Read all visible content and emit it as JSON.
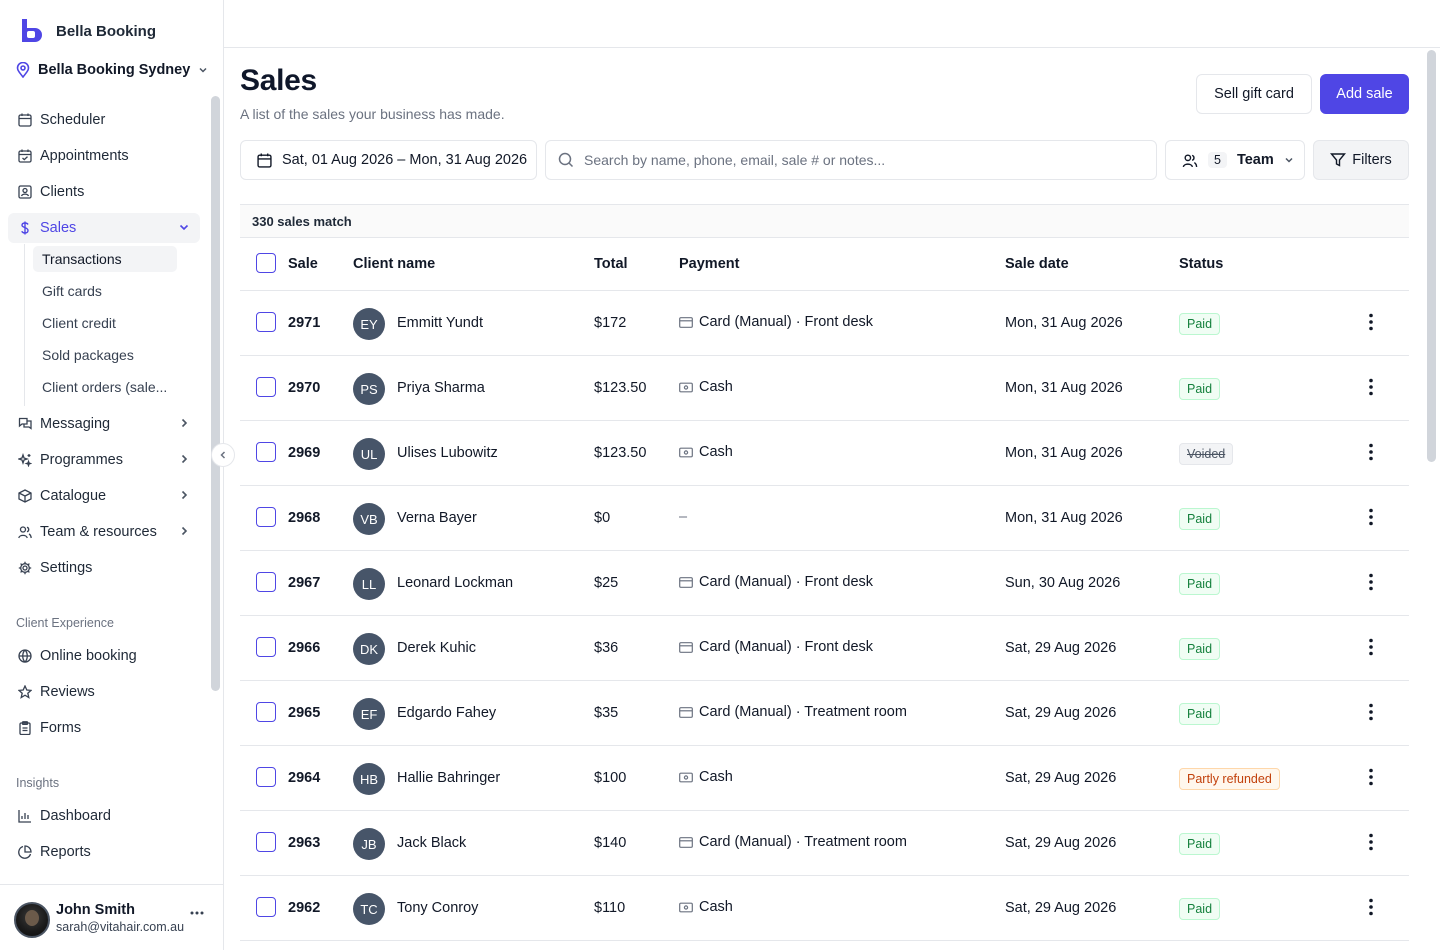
{
  "brand": {
    "name": "Bella Booking",
    "color": "#4f46e5"
  },
  "location": {
    "name": "Bella Booking Sydney"
  },
  "nav": {
    "items": [
      {
        "id": "scheduler",
        "label": "Scheduler",
        "icon": "calendar-icon"
      },
      {
        "id": "appointments",
        "label": "Appointments",
        "icon": "calendar-check-icon"
      },
      {
        "id": "clients",
        "label": "Clients",
        "icon": "contact-icon"
      },
      {
        "id": "sales",
        "label": "Sales",
        "icon": "dollar-icon",
        "active": true,
        "expanded": true
      },
      {
        "id": "messaging",
        "label": "Messaging",
        "icon": "messages-icon"
      },
      {
        "id": "programmes",
        "label": "Programmes",
        "icon": "sparkles-icon"
      },
      {
        "id": "catalogue",
        "label": "Catalogue",
        "icon": "package-icon"
      },
      {
        "id": "team",
        "label": "Team & resources",
        "icon": "users-icon"
      },
      {
        "id": "settings",
        "label": "Settings",
        "icon": "gear-icon"
      }
    ],
    "sales_sub": [
      "Transactions",
      "Gift cards",
      "Client credit",
      "Sold packages",
      "Client orders (sale..."
    ],
    "client_experience_label": "Client Experience",
    "client_experience": [
      {
        "label": "Online booking",
        "icon": "globe-icon"
      },
      {
        "label": "Reviews",
        "icon": "star-icon"
      },
      {
        "label": "Forms",
        "icon": "clipboard-icon"
      }
    ],
    "insights_label": "Insights",
    "insights": [
      {
        "label": "Dashboard",
        "icon": "bar-chart-icon"
      },
      {
        "label": "Reports",
        "icon": "pie-chart-icon"
      }
    ]
  },
  "user": {
    "name": "John Smith",
    "email": "sarah@vitahair.com.au"
  },
  "page": {
    "title": "Sales",
    "subtitle": "A list of the sales your business has made.",
    "sell_gift_card": "Sell gift card",
    "add_sale": "Add sale"
  },
  "toolbar": {
    "date_range": "Sat, 01 Aug 2026 – Mon, 31 Aug 2026",
    "search_placeholder": "Search by name, phone, email, sale # or notes...",
    "team_count": "5",
    "team_label": "Team",
    "filters_label": "Filters"
  },
  "table": {
    "match_text": "330 sales match",
    "headers": {
      "sale": "Sale",
      "client": "Client name",
      "total": "Total",
      "payment": "Payment",
      "date": "Sale date",
      "status": "Status"
    },
    "rows": [
      {
        "sale": "2971",
        "initials": "EY",
        "client": "Emmitt Yundt",
        "total": "$172",
        "payment": "Card (Manual) · Front desk",
        "pay_type": "card",
        "date": "Mon, 31 Aug 2026",
        "status": "Paid",
        "status_type": "paid"
      },
      {
        "sale": "2970",
        "initials": "PS",
        "client": "Priya Sharma",
        "total": "$123.50",
        "payment": "Cash",
        "pay_type": "cash",
        "date": "Mon, 31 Aug 2026",
        "status": "Paid",
        "status_type": "paid"
      },
      {
        "sale": "2969",
        "initials": "UL",
        "client": "Ulises Lubowitz",
        "total": "$123.50",
        "payment": "Cash",
        "pay_type": "cash",
        "date": "Mon, 31 Aug 2026",
        "status": "Voided",
        "status_type": "voided"
      },
      {
        "sale": "2968",
        "initials": "VB",
        "client": "Verna Bayer",
        "total": "$0",
        "payment": "–",
        "pay_type": "none",
        "date": "Mon, 31 Aug 2026",
        "status": "Paid",
        "status_type": "paid"
      },
      {
        "sale": "2967",
        "initials": "LL",
        "client": "Leonard Lockman",
        "total": "$25",
        "payment": "Card (Manual) · Front desk",
        "pay_type": "card",
        "date": "Sun, 30 Aug 2026",
        "status": "Paid",
        "status_type": "paid"
      },
      {
        "sale": "2966",
        "initials": "DK",
        "client": "Derek Kuhic",
        "total": "$36",
        "payment": "Card (Manual) · Front desk",
        "pay_type": "card",
        "date": "Sat, 29 Aug 2026",
        "status": "Paid",
        "status_type": "paid"
      },
      {
        "sale": "2965",
        "initials": "EF",
        "client": "Edgardo Fahey",
        "total": "$35",
        "payment": "Card (Manual) · Treatment room",
        "pay_type": "card",
        "date": "Sat, 29 Aug 2026",
        "status": "Paid",
        "status_type": "paid"
      },
      {
        "sale": "2964",
        "initials": "HB",
        "client": "Hallie Bahringer",
        "total": "$100",
        "payment": "Cash",
        "pay_type": "cash",
        "date": "Sat, 29 Aug 2026",
        "status": "Partly refunded",
        "status_type": "partly"
      },
      {
        "sale": "2963",
        "initials": "JB",
        "client": "Jack Black",
        "total": "$140",
        "payment": "Card (Manual) · Treatment room",
        "pay_type": "card",
        "date": "Sat, 29 Aug 2026",
        "status": "Paid",
        "status_type": "paid"
      },
      {
        "sale": "2962",
        "initials": "TC",
        "client": "Tony Conroy",
        "total": "$110",
        "payment": "Cash",
        "pay_type": "cash",
        "date": "Sat, 29 Aug 2026",
        "status": "Paid",
        "status_type": "paid"
      }
    ]
  }
}
